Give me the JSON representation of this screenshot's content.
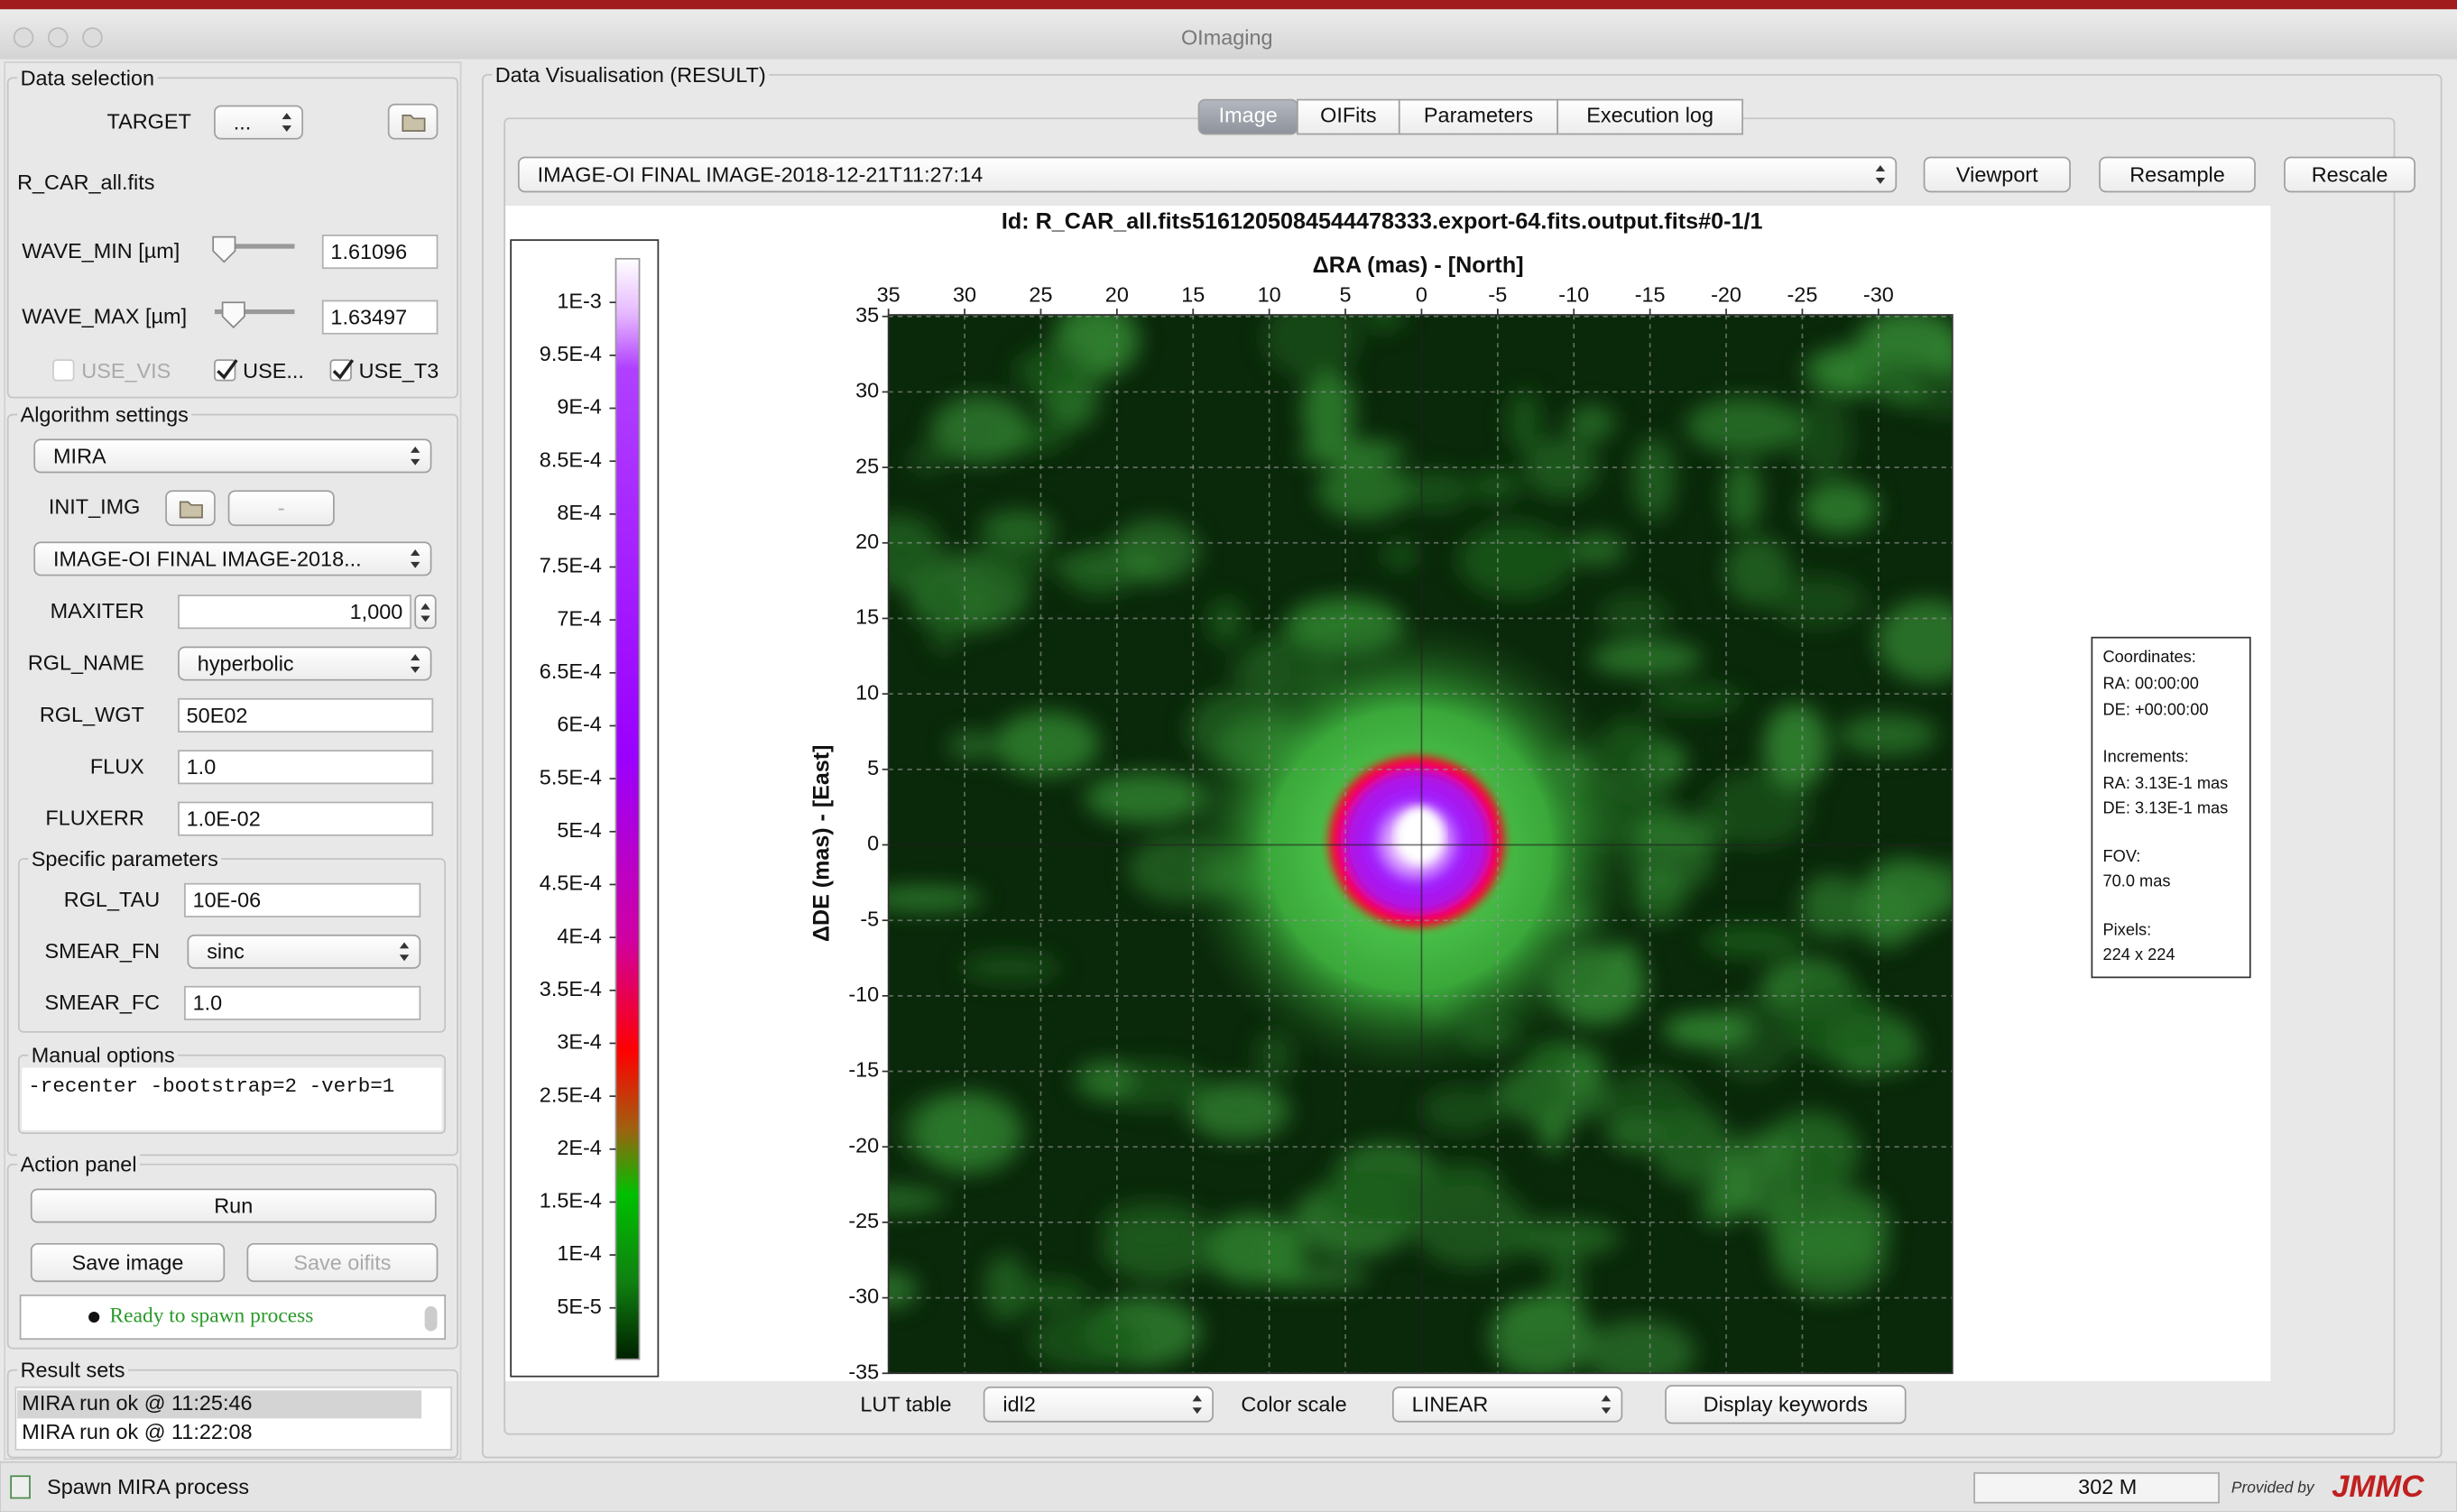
{
  "window": {
    "title": "OImaging"
  },
  "data_selection": {
    "title": "Data selection",
    "target_label": "TARGET",
    "target_value": "...",
    "file": "R_CAR_all.fits",
    "wave_min_label": "WAVE_MIN [µm]",
    "wave_min": "1.61096",
    "wave_max_label": "WAVE_MAX [µm]",
    "wave_max": "1.63497",
    "use_vis": "USE_VIS",
    "use_vis2": "USE...",
    "use_t3": "USE_T3"
  },
  "algorithm": {
    "title": "Algorithm settings",
    "algorithm": "MIRA",
    "init_img_label": "INIT_IMG",
    "init_img_button": "-",
    "init_img": "IMAGE-OI FINAL IMAGE-2018...",
    "fields": [
      {
        "label": "MAXITER",
        "value": "1,000"
      },
      {
        "label": "RGL_NAME",
        "value": "hyperbolic"
      },
      {
        "label": "RGL_WGT",
        "value": "50E02"
      },
      {
        "label": "FLUX",
        "value": "1.0"
      },
      {
        "label": "FLUXERR",
        "value": "1.0E-02"
      }
    ]
  },
  "specific": {
    "title": "Specific parameters",
    "fields": [
      {
        "label": "RGL_TAU",
        "value": "10E-06"
      },
      {
        "label": "SMEAR_FN",
        "value": "sinc"
      },
      {
        "label": "SMEAR_FC",
        "value": "1.0"
      }
    ]
  },
  "manual": {
    "title": "Manual options",
    "text": "-recenter -bootstrap=2 -verb=1"
  },
  "action": {
    "title": "Action panel",
    "run": "Run",
    "save_image": "Save image",
    "save_oifits": "Save oifits",
    "status": "Ready to spawn process"
  },
  "results": {
    "title": "Result sets",
    "items": [
      "MIRA run ok @ 11:25:46",
      "MIRA run ok @ 11:22:08"
    ]
  },
  "visualisation": {
    "title": "Data Visualisation (RESULT)",
    "tabs": [
      "Image",
      "OIFits",
      "Parameters",
      "Execution log"
    ],
    "image_select": "IMAGE-OI FINAL IMAGE-2018-12-21T11:27:14",
    "buttons": [
      "Viewport",
      "Resample",
      "Rescale"
    ],
    "image_id": "Id: R_CAR_all.fits5161205084544478333.export-64.fits.output.fits#0-1/1",
    "x_axis_label": "ΔRA (mas) - [North]",
    "y_axis_label": "ΔDE (mas) - [East]",
    "x_ticks": [
      "35",
      "30",
      "25",
      "20",
      "15",
      "10",
      "5",
      "0",
      "-5",
      "-10",
      "-15",
      "-20",
      "-25",
      "-30"
    ],
    "y_ticks": [
      "35",
      "30",
      "25",
      "20",
      "15",
      "10",
      "5",
      "0",
      "-5",
      "-10",
      "-15",
      "-20",
      "-25",
      "-30",
      "-35"
    ],
    "colorbar_ticks": [
      "1E-3",
      "9.5E-4",
      "9E-4",
      "8.5E-4",
      "8E-4",
      "7.5E-4",
      "7E-4",
      "6.5E-4",
      "6E-4",
      "5.5E-4",
      "5E-4",
      "4.5E-4",
      "4E-4",
      "3.5E-4",
      "3E-4",
      "2.5E-4",
      "2E-4",
      "1.5E-4",
      "1E-4",
      "5E-5"
    ],
    "info": [
      "Coordinates:",
      "RA: 00:00:00",
      "DE: +00:00:00",
      "Increments:",
      "RA: 3.13E-1 mas",
      "DE: 3.13E-1 mas",
      "FOV:",
      "70.0 mas",
      "Pixels:",
      "224 x 224"
    ],
    "lut_label": "LUT table",
    "lut": "idl2",
    "color_scale_label": "Color scale",
    "color_scale": "LINEAR",
    "display_keywords": "Display keywords"
  },
  "status_bar": {
    "message": "Spawn MIRA process",
    "memory": "302 M",
    "provided_by": "Provided by",
    "logo": "JMMC"
  }
}
